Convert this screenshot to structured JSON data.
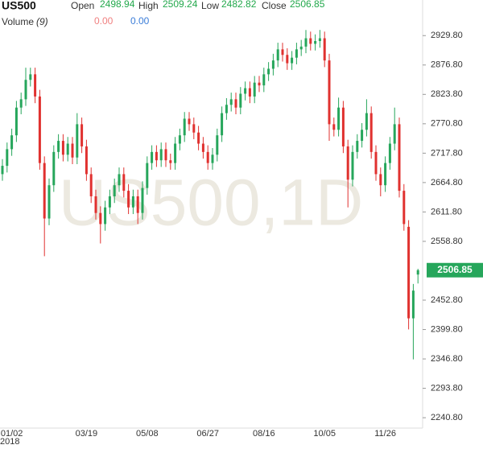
{
  "header": {
    "symbol": "US500",
    "open_label": "Open",
    "high_label": "High",
    "low_label": "Low",
    "close_label": "Close",
    "volume_label": "Volume",
    "volume_period": "(9)",
    "volume_values": [
      "0.00",
      "0.00"
    ]
  },
  "chart_data": {
    "type": "candlestick",
    "watermark": "US500,1D",
    "year_label": "2018",
    "up_color": "#26a65b",
    "down_color": "#e0312f",
    "ylim": [
      2225,
      2994
    ],
    "yticks": [
      {
        "value": 2240.8,
        "label": "2240.80"
      },
      {
        "value": 2293.8,
        "label": "2293.80"
      },
      {
        "value": 2346.8,
        "label": "2346.80"
      },
      {
        "value": 2399.8,
        "label": "2399.80"
      },
      {
        "value": 2452.8,
        "label": "2452.80"
      },
      {
        "value": 2558.8,
        "label": "2558.80"
      },
      {
        "value": 2611.8,
        "label": "2611.80"
      },
      {
        "value": 2664.8,
        "label": "2664.80"
      },
      {
        "value": 2717.8,
        "label": "2717.80"
      },
      {
        "value": 2770.8,
        "label": "2770.80"
      },
      {
        "value": 2823.8,
        "label": "2823.80"
      },
      {
        "value": 2876.8,
        "label": "2876.80"
      },
      {
        "value": 2929.8,
        "label": "2929.80"
      }
    ],
    "categories": [
      null,
      null,
      "01/02",
      null,
      null,
      null,
      null,
      null,
      null,
      null,
      null,
      null,
      null,
      null,
      null,
      null,
      null,
      null,
      "03/19",
      null,
      null,
      null,
      null,
      null,
      null,
      null,
      null,
      null,
      null,
      null,
      null,
      "05/08",
      null,
      null,
      null,
      null,
      null,
      null,
      null,
      null,
      null,
      null,
      null,
      null,
      "06/27",
      null,
      null,
      null,
      null,
      null,
      null,
      null,
      null,
      null,
      null,
      null,
      "08/16",
      null,
      null,
      null,
      null,
      null,
      null,
      null,
      null,
      null,
      null,
      null,
      null,
      "10/05",
      null,
      null,
      null,
      null,
      null,
      null,
      null,
      null,
      null,
      null,
      null,
      null,
      "11/26",
      null,
      null,
      null,
      null,
      null,
      null,
      null
    ],
    "open": [
      2680,
      2695,
      2725,
      2750,
      2800,
      2815,
      2850,
      2860,
      2820,
      2700,
      2600,
      2660,
      2720,
      2740,
      2715,
      2735,
      2710,
      2770,
      2730,
      2680,
      2640,
      2610,
      2590,
      2620,
      2640,
      2660,
      2680,
      2650,
      2620,
      2640,
      2610,
      2655,
      2700,
      2720,
      2705,
      2725,
      2705,
      2700,
      2735,
      2750,
      2780,
      2770,
      2755,
      2735,
      2720,
      2700,
      2715,
      2750,
      2790,
      2805,
      2815,
      2800,
      2825,
      2835,
      2820,
      2845,
      2840,
      2860,
      2870,
      2885,
      2905,
      2895,
      2880,
      2890,
      2905,
      2910,
      2925,
      2915,
      2920,
      2925,
      2885,
      2770,
      2760,
      2800,
      2730,
      2670,
      2720,
      2740,
      2760,
      2790,
      2720,
      2680,
      2660,
      2700,
      2735,
      2770,
      2650,
      2585,
      2420,
      2498.94
    ],
    "high": [
      2707,
      2737,
      2762,
      2812,
      2827,
      2872,
      2872,
      2872,
      2832,
      2712,
      2672,
      2732,
      2752,
      2752,
      2747,
      2747,
      2790,
      2782,
      2742,
      2692,
      2652,
      2622,
      2632,
      2652,
      2672,
      2692,
      2692,
      2662,
      2652,
      2652,
      2667,
      2712,
      2732,
      2732,
      2737,
      2737,
      2717,
      2747,
      2762,
      2792,
      2792,
      2782,
      2767,
      2747,
      2732,
      2727,
      2762,
      2802,
      2817,
      2827,
      2827,
      2837,
      2847,
      2847,
      2857,
      2857,
      2872,
      2882,
      2897,
      2917,
      2917,
      2907,
      2902,
      2917,
      2922,
      2940,
      2937,
      2932,
      2940,
      2937,
      2897,
      2782,
      2818,
      2812,
      2742,
      2732,
      2752,
      2772,
      2815,
      2802,
      2732,
      2692,
      2712,
      2747,
      2800,
      2782,
      2662,
      2597,
      2482,
      2509.24
    ],
    "low": [
      2668,
      2683,
      2713,
      2738,
      2788,
      2803,
      2838,
      2808,
      2688,
      2532,
      2588,
      2648,
      2708,
      2703,
      2703,
      2698,
      2698,
      2718,
      2668,
      2628,
      2598,
      2555,
      2578,
      2608,
      2628,
      2648,
      2638,
      2608,
      2608,
      2590,
      2598,
      2643,
      2688,
      2693,
      2693,
      2693,
      2688,
      2688,
      2723,
      2738,
      2758,
      2743,
      2723,
      2708,
      2688,
      2688,
      2703,
      2738,
      2778,
      2793,
      2788,
      2788,
      2813,
      2808,
      2808,
      2828,
      2828,
      2848,
      2858,
      2873,
      2883,
      2868,
      2868,
      2878,
      2893,
      2898,
      2903,
      2903,
      2908,
      2873,
      2740,
      2748,
      2748,
      2718,
      2620,
      2658,
      2708,
      2728,
      2748,
      2708,
      2668,
      2640,
      2648,
      2688,
      2723,
      2638,
      2578,
      2400,
      2346,
      2482.82
    ],
    "close": [
      2695,
      2725,
      2750,
      2800,
      2815,
      2850,
      2860,
      2820,
      2700,
      2600,
      2660,
      2720,
      2740,
      2715,
      2735,
      2710,
      2770,
      2730,
      2680,
      2640,
      2610,
      2590,
      2620,
      2640,
      2660,
      2680,
      2650,
      2620,
      2640,
      2610,
      2655,
      2700,
      2720,
      2705,
      2725,
      2705,
      2700,
      2735,
      2750,
      2780,
      2770,
      2755,
      2735,
      2720,
      2700,
      2715,
      2750,
      2790,
      2805,
      2815,
      2800,
      2825,
      2835,
      2820,
      2845,
      2840,
      2860,
      2870,
      2885,
      2905,
      2895,
      2880,
      2890,
      2905,
      2910,
      2925,
      2915,
      2920,
      2925,
      2885,
      2770,
      2760,
      2800,
      2730,
      2670,
      2720,
      2740,
      2760,
      2790,
      2720,
      2680,
      2660,
      2700,
      2735,
      2770,
      2650,
      2590,
      2420,
      2470,
      2506.85
    ]
  }
}
